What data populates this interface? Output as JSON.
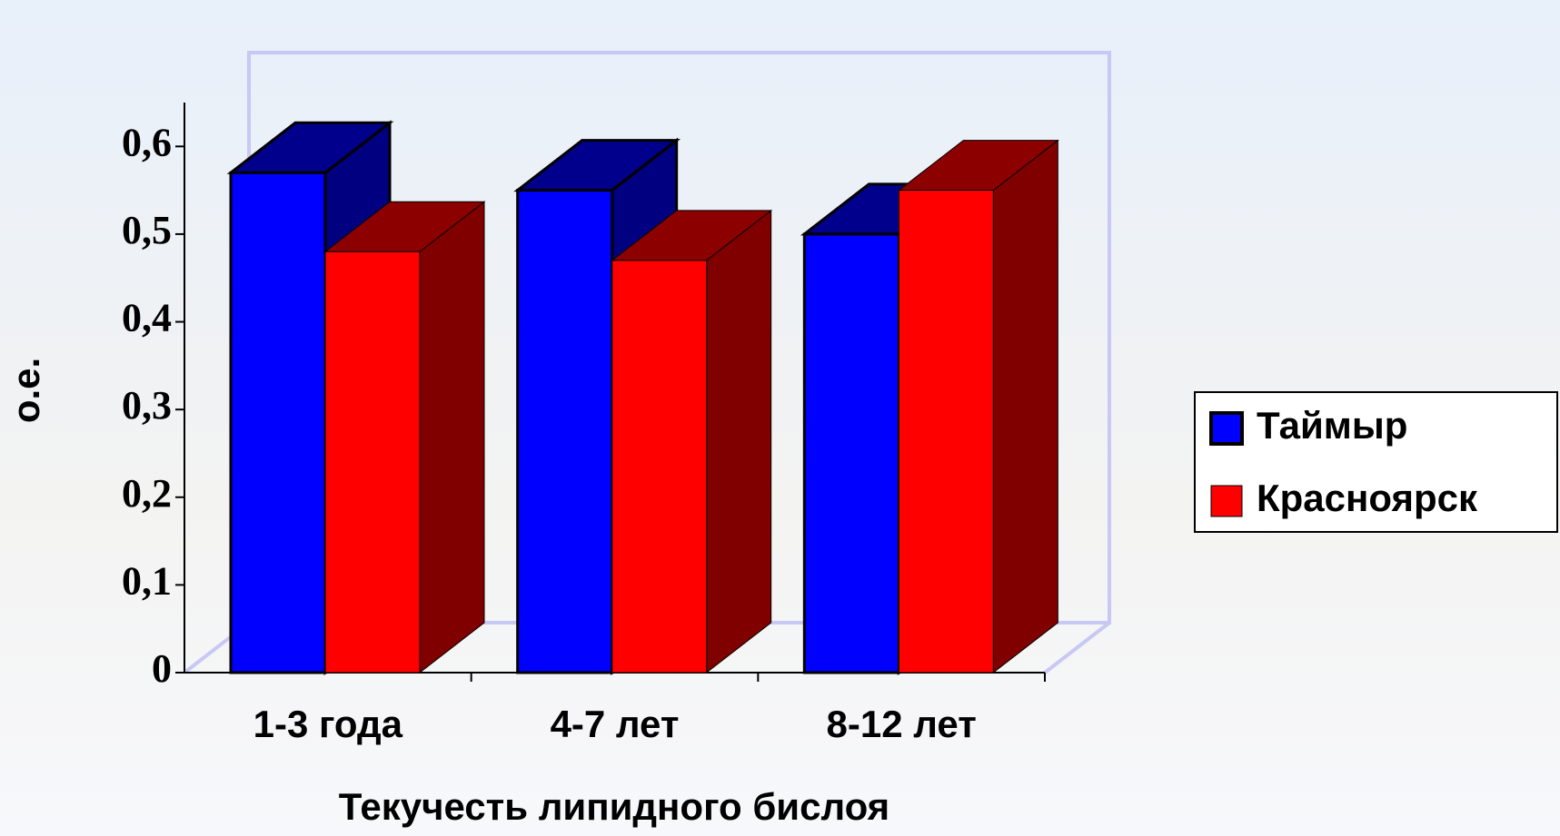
{
  "chart_data": {
    "type": "bar3d",
    "x_label": "Текучесть липидного бислоя",
    "y_label": "о.е.",
    "categories": [
      "1-3 года",
      "4-7 лет",
      "8-12 лет"
    ],
    "series": [
      {
        "name": "Таймыр",
        "color": "#0000ff",
        "values": [
          0.57,
          0.55,
          0.5
        ]
      },
      {
        "name": "Красноярск",
        "color": "#ff0000",
        "values": [
          0.48,
          0.47,
          0.55
        ]
      }
    ],
    "ylim": [
      0,
      0.65
    ],
    "yticks": [
      0,
      {
        "value": 0.1,
        "label": "0,1"
      },
      {
        "value": 0.2,
        "label": "0,2"
      },
      {
        "value": 0.3,
        "label": "0,3"
      },
      {
        "value": 0.4,
        "label": "0,4"
      },
      {
        "value": 0.5,
        "label": "0,5"
      },
      {
        "value": 0.6,
        "label": "0,6"
      }
    ],
    "legend": "right"
  }
}
